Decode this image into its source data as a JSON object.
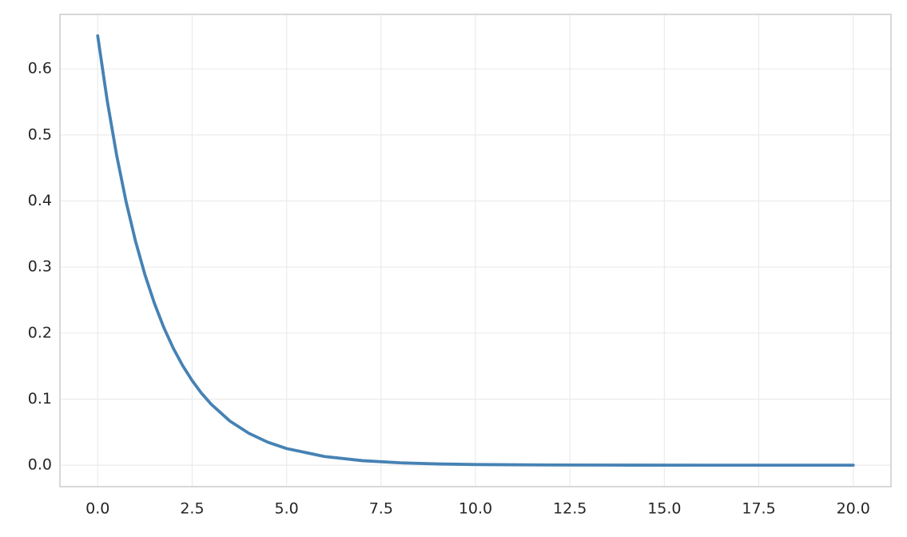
{
  "chart_data": {
    "type": "line",
    "x": [
      0,
      0.25,
      0.5,
      0.75,
      1,
      1.25,
      1.5,
      1.75,
      2,
      2.25,
      2.5,
      2.75,
      3,
      3.5,
      4,
      4.5,
      5,
      6,
      7,
      8,
      9,
      10,
      12,
      14,
      16,
      18,
      20
    ],
    "values": [
      0.65,
      0.5525,
      0.4696,
      0.3992,
      0.3393,
      0.2884,
      0.2452,
      0.2084,
      0.1771,
      0.1506,
      0.1281,
      0.1088,
      0.0925,
      0.0668,
      0.0483,
      0.0349,
      0.0252,
      0.0132,
      0.0069,
      0.0036,
      0.0019,
      0.001,
      0.0003,
      0.0001,
      0,
      0,
      0
    ],
    "color": "#4682b4",
    "xlim": [
      -1,
      21
    ],
    "ylim": [
      -0.0325,
      0.6825
    ],
    "xticks": [
      {
        "value": 0,
        "label": "0.0"
      },
      2.5,
      {
        "value": 5,
        "label": "5.0"
      },
      7.5,
      {
        "value": 10,
        "label": "10.0"
      },
      12.5,
      {
        "value": 15,
        "label": "15.0"
      },
      17.5,
      {
        "value": 20,
        "label": "20.0"
      }
    ],
    "yticks": [
      {
        "value": 0,
        "label": "0.0"
      },
      0.1,
      0.2,
      0.3,
      0.4,
      0.5,
      0.6
    ],
    "grid": true
  }
}
